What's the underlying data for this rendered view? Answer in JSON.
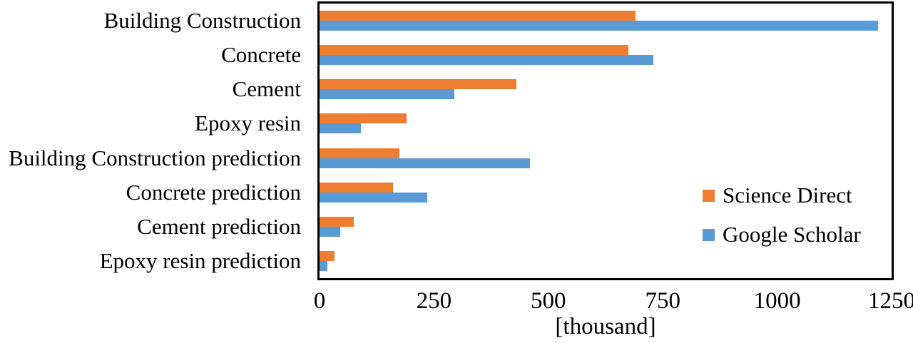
{
  "chart_data": {
    "type": "bar",
    "orientation": "horizontal",
    "title": "",
    "xlabel": "[thousand]",
    "ylabel": "",
    "xlim": [
      0,
      1250
    ],
    "xticks": [
      0,
      250,
      500,
      750,
      1000,
      1250
    ],
    "grid": false,
    "legend_position": "right-middle",
    "background_color": "#FFFFFF",
    "frame_color": "#000000",
    "text_color": "#000000",
    "categories": [
      "Building Construction",
      "Concrete",
      "Cement",
      "Epoxy resin",
      "Building Construction prediction",
      "Concrete prediction",
      "Cement prediction",
      "Epoxy resin prediction"
    ],
    "series": [
      {
        "name": "Science Direct",
        "color": "#ED7D31",
        "values": [
          690,
          675,
          430,
          190,
          175,
          160,
          75,
          33
        ]
      },
      {
        "name": "Google Scholar",
        "color": "#5B9BD5",
        "values": [
          1220,
          730,
          295,
          90,
          460,
          235,
          45,
          17
        ]
      }
    ],
    "units": "thousand"
  }
}
